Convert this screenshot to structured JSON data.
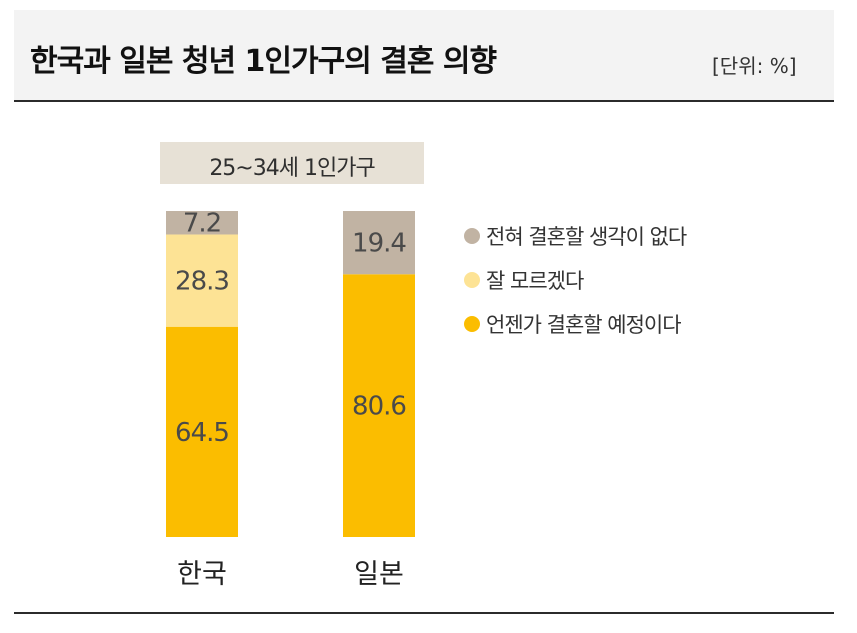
{
  "header": {
    "title": "한국과 일본 청년 1인가구의 결혼 의향",
    "unit": "[단위: %]"
  },
  "chart_data": {
    "type": "bar",
    "stacked": true,
    "subtitle": "25~34세 1인가구",
    "categories": [
      "한국",
      "일본"
    ],
    "series": [
      {
        "name": "언젠가 결혼할 예정이다",
        "values": [
          64.5,
          80.6
        ],
        "color": "#fbbd00"
      },
      {
        "name": "잘 모르겠다",
        "values": [
          28.3,
          null
        ],
        "color": "#fde395"
      },
      {
        "name": "전혀 결혼할 생각이 없다",
        "values": [
          7.2,
          19.4
        ],
        "color": "#c1b3a3"
      }
    ],
    "data_labels": [
      [
        "64.5",
        "28.3",
        "7.2"
      ],
      [
        "80.6",
        "",
        "19.4"
      ]
    ],
    "ylim": [
      0,
      100
    ],
    "legend_position": "right",
    "legend_order": [
      "전혀 결혼할 생각이 없다",
      "잘 모르겠다",
      "언젠가 결혼할 예정이다"
    ],
    "grid": false
  }
}
